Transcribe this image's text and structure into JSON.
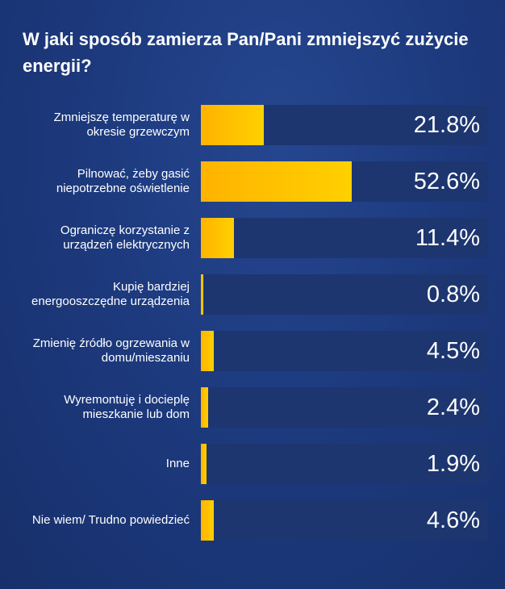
{
  "colors": {
    "background": "#1d3a7e",
    "track": "#1d3670",
    "bar": "#ffc000",
    "text": "#ffffff"
  },
  "chart_data": {
    "type": "bar",
    "orientation": "horizontal",
    "title": "W jaki sposób zamierza Pan/Pani zmniejszyć zużycie energii?",
    "xlim": [
      0,
      100
    ],
    "categories": [
      "Zmniejszę temperaturę w okresie grzewczym",
      "Pilnować, żeby gasić niepotrzebne oświetlenie",
      "Ograniczę korzystanie z urządzeń elektrycznych",
      "Kupię bardziej energooszczędne urządzenia",
      "Zmienię źródło ogrzewania w domu/mieszaniu",
      "Wyremontuję i docieplę mieszkanie lub dom",
      "Inne",
      "Nie wiem/ Trudno powiedzieć"
    ],
    "values": [
      21.8,
      52.6,
      11.4,
      0.8,
      4.5,
      2.4,
      1.9,
      4.6
    ],
    "value_labels": [
      "21.8%",
      "52.6%",
      "11.4%",
      "0.8%",
      "4.5%",
      "2.4%",
      "1.9%",
      "4.6%"
    ]
  }
}
